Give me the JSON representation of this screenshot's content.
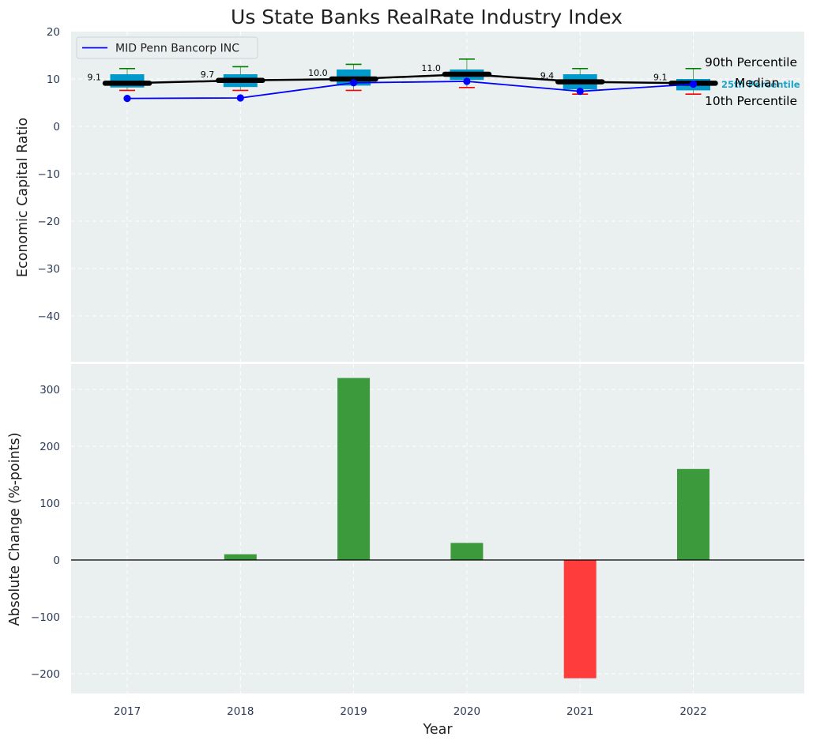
{
  "chart_data": [
    {
      "type": "box",
      "title": "Us State Banks RealRate Industry Index",
      "xlabel": "",
      "ylabel": "Economic Capital Ratio",
      "ylim": [
        -50,
        20
      ],
      "yticks": [
        20,
        10,
        0,
        -10,
        -20,
        -30,
        -40
      ],
      "categories": [
        "2017",
        "2018",
        "2019",
        "2020",
        "2021",
        "2022"
      ],
      "p10": [
        7.6,
        7.6,
        7.6,
        8.2,
        6.8,
        6.8
      ],
      "q25": [
        8.2,
        8.3,
        8.6,
        9.8,
        7.8,
        7.6
      ],
      "median": [
        9.1,
        9.7,
        10.0,
        11.0,
        9.4,
        9.1
      ],
      "q75": [
        11.0,
        11.0,
        12.0,
        12.0,
        11.0,
        10.0
      ],
      "p90": [
        12.2,
        12.6,
        13.1,
        14.2,
        12.2,
        12.2
      ],
      "median_labels": [
        "9.1",
        "9.7",
        "10.0",
        "11.0",
        "9.4",
        "9.1"
      ],
      "series": [
        {
          "name": "MID Penn Bancorp INC",
          "values": [
            5.9,
            6.0,
            9.2,
            9.5,
            7.4,
            8.9
          ],
          "color": "#0000ff"
        }
      ],
      "legend": {
        "entries": [
          "MID Penn Bancorp INC"
        ],
        "position": "top-left"
      },
      "annotations": {
        "p90": "90th Percentile",
        "median": "Median",
        "q25": "25th Percentile",
        "p10": "10th Percentile"
      },
      "colors": {
        "box": "#0099cc",
        "median": "#000000",
        "p90": "#008000",
        "p10": "#ff0000"
      }
    },
    {
      "type": "bar",
      "xlabel": "Year",
      "ylabel": "Absolute Change (%-points)",
      "ylim": [
        -233,
        350
      ],
      "yticks": [
        300,
        200,
        100,
        0,
        -100,
        -200
      ],
      "categories": [
        "2017",
        "2018",
        "2019",
        "2020",
        "2021",
        "2022"
      ],
      "values": [
        0,
        10,
        320,
        30,
        -208,
        160
      ],
      "colors": {
        "positive": "#3c9a3c",
        "negative": "#ff3c3c"
      }
    }
  ]
}
